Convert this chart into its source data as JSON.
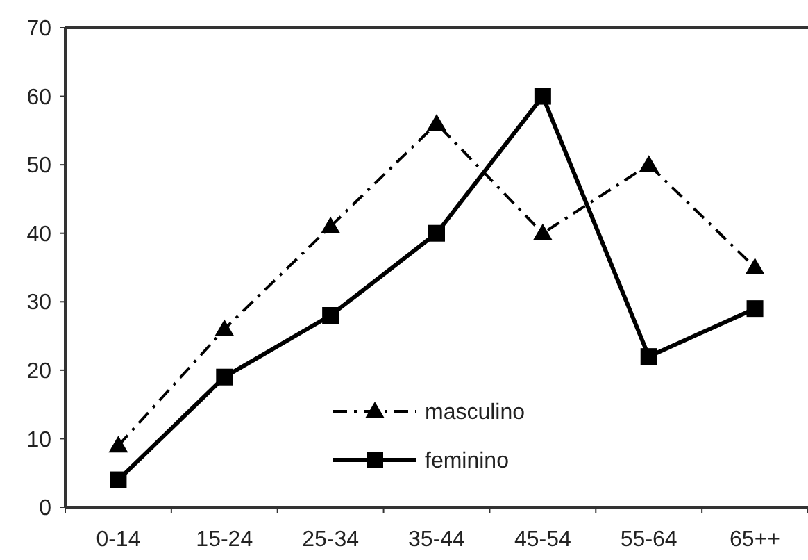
{
  "chart_data": {
    "type": "line",
    "categories": [
      "0-14",
      "15-24",
      "25-34",
      "35-44",
      "45-54",
      "55-64",
      "65++"
    ],
    "series": [
      {
        "name": "masculino",
        "color": "#000000",
        "values": [
          9,
          26,
          41,
          56,
          40,
          50,
          35
        ],
        "marker": "triangle",
        "line_style": "dashed"
      },
      {
        "name": "feminino",
        "color": "#000000",
        "values": [
          4,
          19,
          28,
          40,
          60,
          22,
          29
        ],
        "marker": "square",
        "line_style": "solid"
      }
    ],
    "ylim": [
      0,
      70
    ],
    "yticks": [
      0,
      10,
      20,
      30,
      40,
      50,
      60,
      70
    ],
    "grid": false,
    "legend": "bottom"
  }
}
